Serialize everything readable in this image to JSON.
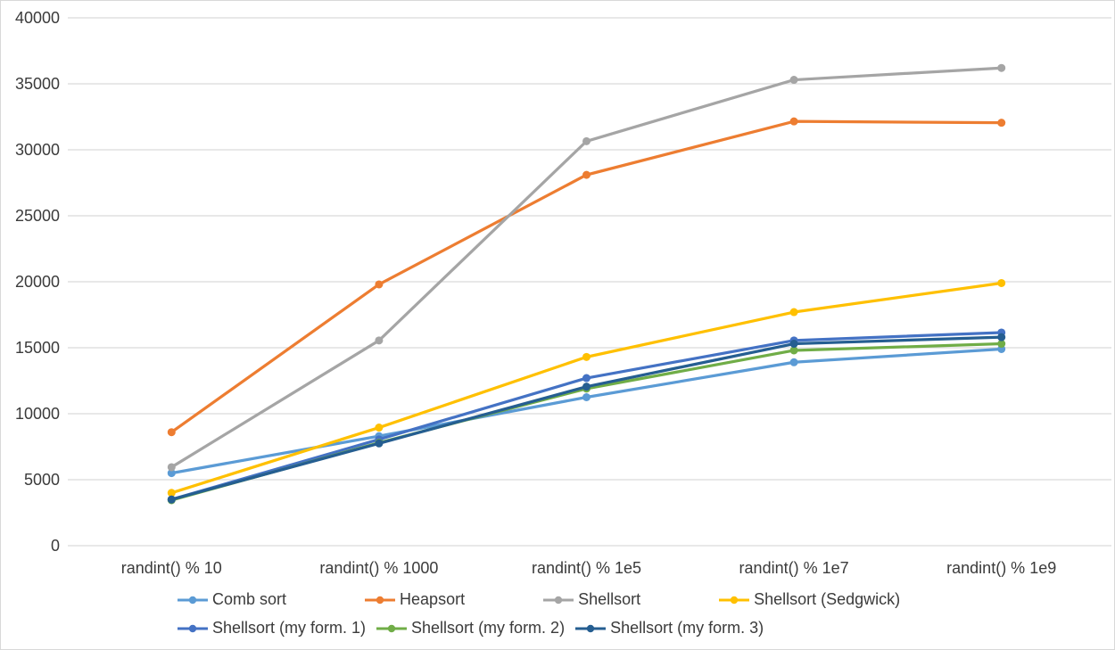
{
  "chart_data": {
    "type": "line",
    "title": "",
    "xlabel": "",
    "ylabel": "",
    "categories": [
      "randint() % 10",
      "randint() % 1000",
      "randint() % 1e5",
      "randint() % 1e7",
      "randint() % 1e9"
    ],
    "series": [
      {
        "name": "Comb sort",
        "color": "#5B9BD5",
        "values": [
          5500,
          8300,
          11250,
          13900,
          14900
        ]
      },
      {
        "name": "Heapsort",
        "color": "#ED7D31",
        "values": [
          8600,
          19800,
          28100,
          32150,
          32050
        ]
      },
      {
        "name": "Shellsort",
        "color": "#A5A5A5",
        "values": [
          5950,
          15550,
          30650,
          35300,
          36200
        ]
      },
      {
        "name": "Shellsort (Sedgwick)",
        "color": "#FFC000",
        "values": [
          4000,
          8950,
          14300,
          17700,
          19900
        ]
      },
      {
        "name": "Shellsort (my form. 1)",
        "color": "#4472C4",
        "values": [
          3500,
          8050,
          12700,
          15550,
          16150
        ]
      },
      {
        "name": "Shellsort (my form. 2)",
        "color": "#70AD47",
        "values": [
          3450,
          7800,
          11900,
          14800,
          15300
        ]
      },
      {
        "name": "Shellsort (my form. 3)",
        "color": "#255E91",
        "values": [
          3500,
          7750,
          12050,
          15300,
          15800
        ]
      }
    ],
    "ylim": [
      0,
      40000
    ],
    "ytick_step": 5000,
    "y_tick_labels": [
      "0",
      "5000",
      "10000",
      "15000",
      "20000",
      "25000",
      "30000",
      "35000",
      "40000"
    ],
    "grid": true,
    "legend_position": "bottom",
    "legend_rows": [
      [
        "Comb sort",
        "Heapsort",
        "Shellsort",
        "Shellsort (Sedgwick)"
      ],
      [
        "Shellsort (my form. 1)",
        "Shellsort (my form. 2)",
        "Shellsort (my form. 3)"
      ]
    ]
  },
  "colors": {
    "background": "#ffffff",
    "border": "#d8d8d8",
    "gridline": "#d9d9d9",
    "axis_text": "#3b3b3b"
  }
}
